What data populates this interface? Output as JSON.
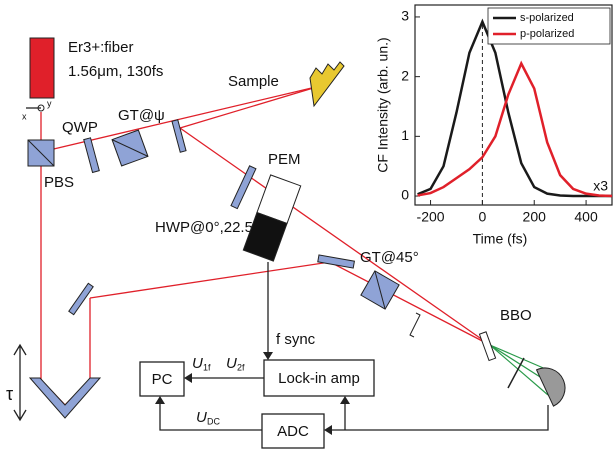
{
  "diagram": {
    "laser": "Er3+:fiber",
    "laser_spec": "1.56μm, 130fs",
    "qwp": "QWP",
    "gt_psi": "GT@ψ",
    "sample": "Sample",
    "pbs": "PBS",
    "hwp": "HWP@0°,22.5°",
    "pem": "PEM",
    "gt45": "GT@45°",
    "bbo": "BBO",
    "fsync": "f sync",
    "pc": "PC",
    "u": "U",
    "u1f": "1f",
    "u2": "U",
    "u2f": "2f",
    "lockin": "Lock-in amp",
    "udc": "U",
    "udc_sub": "DC",
    "adc": "ADC",
    "tau": "τ",
    "ax_x": "x",
    "ax_y": "y"
  },
  "chart_data": {
    "type": "line",
    "x_label": "Time (fs)",
    "y_label": "CF Intensity (arb. un.)",
    "x": [
      -250,
      -200,
      -150,
      -100,
      -50,
      0,
      50,
      100,
      150,
      200,
      250,
      300,
      350,
      400,
      450,
      500
    ],
    "series": [
      {
        "name": "s-polarized",
        "color": "#1a1a1a",
        "values": [
          0.03,
          0.12,
          0.5,
          1.4,
          2.4,
          2.92,
          2.4,
          1.4,
          0.55,
          0.15,
          0.04,
          0.01,
          0,
          0,
          0,
          0
        ]
      },
      {
        "name": "p-polarized",
        "color": "#e0202a",
        "values": [
          0.01,
          0.05,
          0.15,
          0.3,
          0.45,
          0.65,
          1.0,
          1.7,
          2.22,
          1.8,
          0.9,
          0.35,
          0.12,
          0.04,
          0.01,
          0
        ]
      }
    ],
    "xlim": [
      -260,
      500
    ],
    "xticks": [
      -200,
      0,
      200,
      400
    ],
    "ylim": [
      -0.15,
      3.2
    ],
    "yticks": [
      0,
      1,
      2,
      3
    ],
    "vline": 0,
    "annotation": "x3",
    "legend": "upper right"
  }
}
